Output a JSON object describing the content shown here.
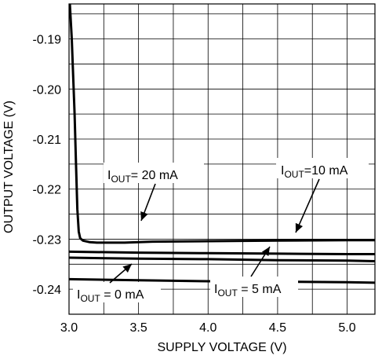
{
  "chart_data": {
    "type": "line",
    "title": "",
    "xlabel": "SUPPLY VOLTAGE (V)",
    "ylabel": "OUTPUT VOLTAGE (V)",
    "xlim": [
      3.0,
      5.2
    ],
    "ylim": [
      -0.245,
      -0.183
    ],
    "grid": true,
    "x_ticks": [
      3.0,
      3.5,
      4.0,
      4.5,
      5.0
    ],
    "x_tick_labels": [
      "3.0",
      "3.5",
      "4.0",
      "4.5",
      "5.0"
    ],
    "y_ticks": [
      -0.19,
      -0.2,
      -0.21,
      -0.22,
      -0.23,
      -0.24
    ],
    "y_tick_labels": [
      "-0.19",
      "-0.20",
      "-0.21",
      "-0.22",
      "-0.23",
      "-0.24"
    ],
    "series": [
      {
        "name": "IOUT = 20 mA",
        "x": [
          3.0,
          3.02,
          3.04,
          3.05,
          3.06,
          3.07,
          3.08,
          3.1,
          3.15,
          3.2,
          3.4,
          3.6,
          4.0,
          4.5,
          5.0,
          5.2
        ],
        "y": [
          -0.18,
          -0.19,
          -0.205,
          -0.215,
          -0.224,
          -0.2285,
          -0.2298,
          -0.2303,
          -0.2306,
          -0.2307,
          -0.2307,
          -0.2305,
          -0.2304,
          -0.2303,
          -0.2302,
          -0.2302
        ]
      },
      {
        "name": "IOUT = 10 mA",
        "x": [
          3.0,
          3.5,
          4.0,
          4.5,
          5.0,
          5.2
        ],
        "y": [
          -0.2325,
          -0.2327,
          -0.2328,
          -0.2329,
          -0.233,
          -0.233
        ]
      },
      {
        "name": "IOUT = 5 mA",
        "x": [
          3.0,
          3.5,
          4.0,
          4.5,
          5.0,
          5.2
        ],
        "y": [
          -0.2337,
          -0.2339,
          -0.234,
          -0.2342,
          -0.2343,
          -0.2344
        ]
      },
      {
        "name": "IOUT = 0 mA",
        "x": [
          3.0,
          3.5,
          4.0,
          4.5,
          5.0,
          5.2
        ],
        "y": [
          -0.238,
          -0.2382,
          -0.2384,
          -0.2385,
          -0.2386,
          -0.2387
        ]
      }
    ],
    "annotations": [
      {
        "main": "I",
        "sub": "OUT",
        "rest": "= 20 mA",
        "series": 0
      },
      {
        "main": "I",
        "sub": "OUT",
        "rest": "=10 mA",
        "series": 1
      },
      {
        "main": "I",
        "sub": "OUT",
        "rest": " = 5 mA",
        "series": 2
      },
      {
        "main": "I",
        "sub": "OUT",
        "rest": " = 0 mA",
        "series": 3
      }
    ]
  }
}
